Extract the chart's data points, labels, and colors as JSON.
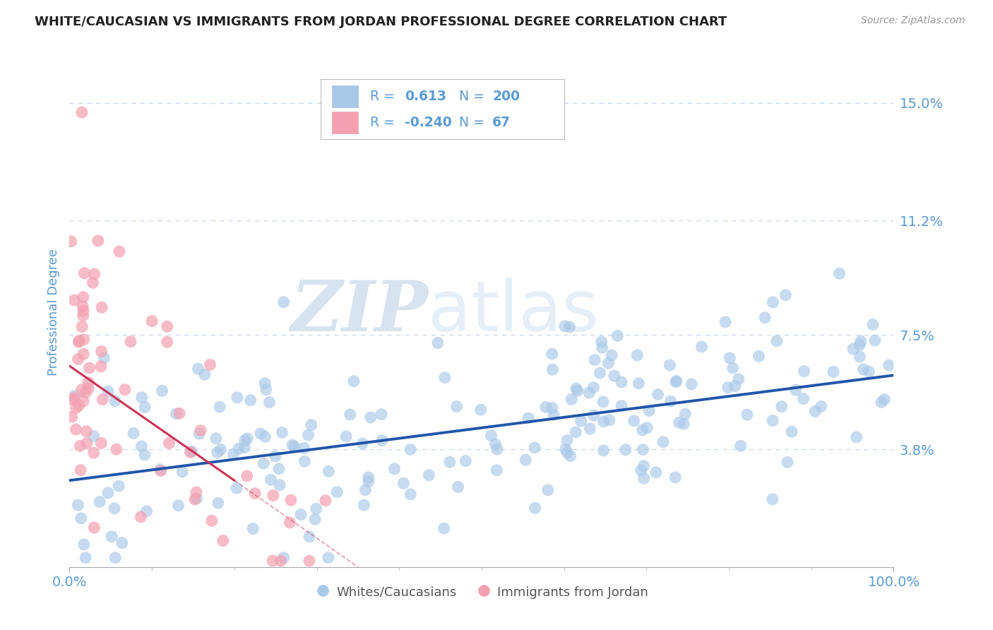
{
  "title": "WHITE/CAUCASIAN VS IMMIGRANTS FROM JORDAN PROFESSIONAL DEGREE CORRELATION CHART",
  "source_text": "Source: ZipAtlas.com",
  "ylabel": "Professional Degree",
  "watermark_zip": "ZIP",
  "watermark_atlas": "atlas",
  "x_min": 0.0,
  "x_max": 100.0,
  "y_min": 0.0,
  "y_max": 16.5,
  "y_ticks": [
    3.8,
    7.5,
    11.2,
    15.0
  ],
  "x_ticks_major": [
    0.0,
    100.0
  ],
  "x_ticks_minor": [
    10,
    20,
    30,
    40,
    50,
    60,
    70,
    80,
    90
  ],
  "blue_R": 0.613,
  "blue_N": 200,
  "pink_R": -0.24,
  "pink_N": 67,
  "blue_scatter_color": "#a8c8e8",
  "blue_line_color": "#2255aa",
  "pink_scatter_color": "#f4a0b0",
  "pink_line_color": "#cc3355",
  "pink_line_dashed_color": "#cc3355",
  "title_color": "#222222",
  "axis_label_color": "#5b9bd5",
  "tick_label_color": "#5b9bd5",
  "grid_color": "#c8d8ec",
  "background_color": "#ffffff",
  "blue_trend_x0": 0.0,
  "blue_trend_y0": 2.8,
  "blue_trend_x1": 100.0,
  "blue_trend_y1": 6.2,
  "pink_trend_x0": 0.0,
  "pink_trend_y0": 6.5,
  "pink_trend_x1": 20.0,
  "pink_trend_y1": 2.8,
  "pink_trend_ext_x1": 35.0,
  "pink_trend_ext_y1": 0.0,
  "legend_label_blue": "Whites/Caucasians",
  "legend_label_pink": "Immigrants from Jordan",
  "blue_scatter_seed": 42,
  "pink_scatter_seed": 123
}
